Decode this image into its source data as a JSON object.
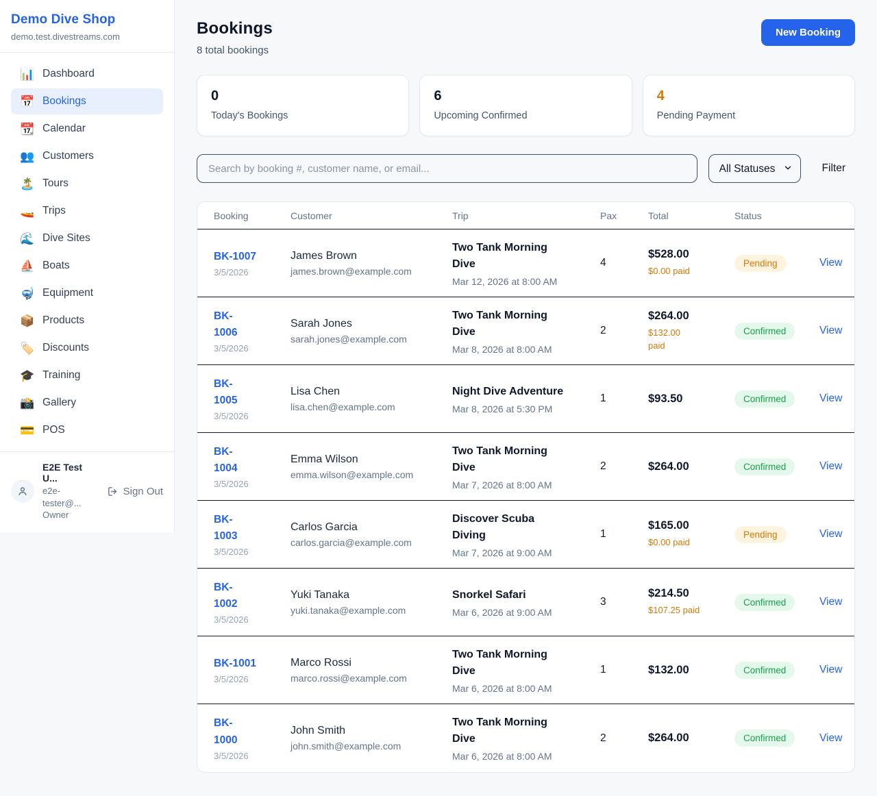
{
  "colors": {
    "accent": "#2563eb",
    "pending_text": "#d97706",
    "pending_bg": "#fcf4de",
    "confirmed_text": "#16a34a",
    "confirmed_bg": "#e4f8ec"
  },
  "sidebar": {
    "brand": "Demo Dive Shop",
    "domain": "demo.test.divestreams.com",
    "items": [
      {
        "key": "dashboard",
        "icon": "📊",
        "icon_name": "bar-chart-icon",
        "label": "Dashboard",
        "active": false
      },
      {
        "key": "bookings",
        "icon": "📅",
        "icon_name": "calendar-icon",
        "label": "Bookings",
        "active": true
      },
      {
        "key": "calendar",
        "icon": "📆",
        "icon_name": "tear-off-calendar-icon",
        "label": "Calendar",
        "active": false
      },
      {
        "key": "customers",
        "icon": "👥",
        "icon_name": "people-icon",
        "label": "Customers",
        "active": false
      },
      {
        "key": "tours",
        "icon": "🏝️",
        "icon_name": "island-icon",
        "label": "Tours",
        "active": false
      },
      {
        "key": "trips",
        "icon": "🚤",
        "icon_name": "speedboat-icon",
        "label": "Trips",
        "active": false
      },
      {
        "key": "dive-sites",
        "icon": "🌊",
        "icon_name": "wave-icon",
        "label": "Dive Sites",
        "active": false
      },
      {
        "key": "boats",
        "icon": "⛵",
        "icon_name": "sailboat-icon",
        "label": "Boats",
        "active": false
      },
      {
        "key": "equipment",
        "icon": "🤿",
        "icon_name": "diving-mask-icon",
        "label": "Equipment",
        "active": false
      },
      {
        "key": "products",
        "icon": "📦",
        "icon_name": "package-icon",
        "label": "Products",
        "active": false
      },
      {
        "key": "discounts",
        "icon": "🏷️",
        "icon_name": "tag-icon",
        "label": "Discounts",
        "active": false
      },
      {
        "key": "training",
        "icon": "🎓",
        "icon_name": "graduation-cap-icon",
        "label": "Training",
        "active": false
      },
      {
        "key": "gallery",
        "icon": "📸",
        "icon_name": "camera-flash-icon",
        "label": "Gallery",
        "active": false
      },
      {
        "key": "pos",
        "icon": "💳",
        "icon_name": "credit-card-icon",
        "label": "POS",
        "active": false
      }
    ],
    "user": {
      "name": "E2E Test U...",
      "email": "e2e-tester@...",
      "role": "Owner",
      "sign_out": "Sign Out"
    }
  },
  "header": {
    "title": "Bookings",
    "subtitle": "8 total bookings",
    "new_booking_label": "New Booking"
  },
  "stats": [
    {
      "value": "0",
      "label": "Today's Bookings",
      "color": "#0f172a"
    },
    {
      "value": "6",
      "label": "Upcoming Confirmed",
      "color": "#0f172a"
    },
    {
      "value": "4",
      "label": "Pending Payment",
      "color": "#d97706"
    }
  ],
  "filters": {
    "search_placeholder": "Search by booking #, customer name, or email...",
    "status_select_value": "All Statuses",
    "filter_label": "Filter"
  },
  "table": {
    "columns": [
      "Booking",
      "Customer",
      "Trip",
      "Pax",
      "Total",
      "Status"
    ],
    "view_label": "View",
    "rows": [
      {
        "id_lines": [
          "BK-1007"
        ],
        "date": "3/5/2026",
        "customer_name": "James Brown",
        "customer_email": "james.brown@example.com",
        "trip_lines": [
          "Two Tank Morning",
          "Dive"
        ],
        "trip_datetime": "Mar 12, 2026 at 8:00 AM",
        "pax": "4",
        "total": "$528.00",
        "paid_lines": [
          "$0.00 paid"
        ],
        "status": "Pending"
      },
      {
        "id_lines": [
          "BK-",
          "1006"
        ],
        "date": "3/5/2026",
        "customer_name": "Sarah Jones",
        "customer_email": "sarah.jones@example.com",
        "trip_lines": [
          "Two Tank Morning",
          "Dive"
        ],
        "trip_datetime": "Mar 8, 2026 at 8:00 AM",
        "pax": "2",
        "total": "$264.00",
        "paid_lines": [
          "$132.00",
          "paid"
        ],
        "status": "Confirmed"
      },
      {
        "id_lines": [
          "BK-",
          "1005"
        ],
        "date": "3/5/2026",
        "customer_name": "Lisa Chen",
        "customer_email": "lisa.chen@example.com",
        "trip_lines": [
          "Night Dive Adventure"
        ],
        "trip_datetime": "Mar 8, 2026 at 5:30 PM",
        "pax": "1",
        "total": "$93.50",
        "paid_lines": [],
        "status": "Confirmed"
      },
      {
        "id_lines": [
          "BK-",
          "1004"
        ],
        "date": "3/5/2026",
        "customer_name": "Emma Wilson",
        "customer_email": "emma.wilson@example.com",
        "trip_lines": [
          "Two Tank Morning",
          "Dive"
        ],
        "trip_datetime": "Mar 7, 2026 at 8:00 AM",
        "pax": "2",
        "total": "$264.00",
        "paid_lines": [],
        "status": "Confirmed"
      },
      {
        "id_lines": [
          "BK-",
          "1003"
        ],
        "date": "3/5/2026",
        "customer_name": "Carlos Garcia",
        "customer_email": "carlos.garcia@example.com",
        "trip_lines": [
          "Discover Scuba",
          "Diving"
        ],
        "trip_datetime": "Mar 7, 2026 at 9:00 AM",
        "pax": "1",
        "total": "$165.00",
        "paid_lines": [
          "$0.00 paid"
        ],
        "status": "Pending"
      },
      {
        "id_lines": [
          "BK-",
          "1002"
        ],
        "date": "3/5/2026",
        "customer_name": "Yuki Tanaka",
        "customer_email": "yuki.tanaka@example.com",
        "trip_lines": [
          "Snorkel Safari"
        ],
        "trip_datetime": "Mar 6, 2026 at 9:00 AM",
        "pax": "3",
        "total": "$214.50",
        "paid_lines": [
          "$107.25 paid"
        ],
        "status": "Confirmed"
      },
      {
        "id_lines": [
          "BK-1001"
        ],
        "date": "3/5/2026",
        "customer_name": "Marco Rossi",
        "customer_email": "marco.rossi@example.com",
        "trip_lines": [
          "Two Tank Morning",
          "Dive"
        ],
        "trip_datetime": "Mar 6, 2026 at 8:00 AM",
        "pax": "1",
        "total": "$132.00",
        "paid_lines": [],
        "status": "Confirmed"
      },
      {
        "id_lines": [
          "BK-",
          "1000"
        ],
        "date": "3/5/2026",
        "customer_name": "John Smith",
        "customer_email": "john.smith@example.com",
        "trip_lines": [
          "Two Tank Morning",
          "Dive"
        ],
        "trip_datetime": "Mar 6, 2026 at 8:00 AM",
        "pax": "2",
        "total": "$264.00",
        "paid_lines": [],
        "status": "Confirmed"
      }
    ]
  }
}
